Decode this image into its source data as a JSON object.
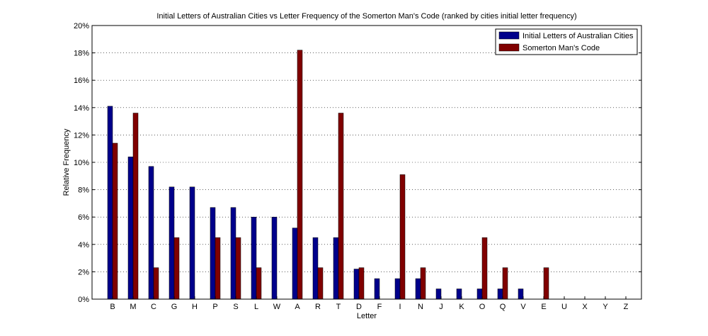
{
  "chart_data": {
    "type": "bar",
    "title": "Initial Letters of Australian Cities vs Letter Frequency of the Somerton Man's Code (ranked by cities initial letter frequency)",
    "xlabel": "Letter",
    "ylabel": "Relative Frequency",
    "ylim": [
      0,
      20
    ],
    "yticks": [
      "0%",
      "2%",
      "4%",
      "6%",
      "8%",
      "10%",
      "12%",
      "14%",
      "16%",
      "18%",
      "20%"
    ],
    "grid": "horizontal dotted",
    "legend_position": "top-right",
    "categories": [
      "B",
      "M",
      "C",
      "G",
      "H",
      "P",
      "S",
      "L",
      "W",
      "A",
      "R",
      "T",
      "D",
      "F",
      "I",
      "N",
      "J",
      "K",
      "O",
      "Q",
      "V",
      "E",
      "U",
      "X",
      "Y",
      "Z"
    ],
    "series": [
      {
        "name": "Initial Letters of Australian Cities",
        "color": "#00008b",
        "values": [
          14.1,
          10.4,
          9.7,
          8.2,
          8.2,
          6.7,
          6.7,
          6.0,
          6.0,
          5.2,
          4.5,
          4.5,
          2.2,
          1.5,
          1.5,
          1.5,
          0.75,
          0.75,
          0.75,
          0.75,
          0.75,
          0,
          0,
          0,
          0,
          0
        ]
      },
      {
        "name": "Somerton Man's Code",
        "color": "#800000",
        "values": [
          11.4,
          13.6,
          2.3,
          4.5,
          0,
          4.5,
          4.5,
          2.3,
          0,
          18.2,
          2.3,
          13.6,
          2.3,
          0,
          9.1,
          2.3,
          0,
          0,
          4.5,
          2.3,
          0,
          2.3,
          0,
          0,
          0,
          0
        ]
      }
    ]
  }
}
